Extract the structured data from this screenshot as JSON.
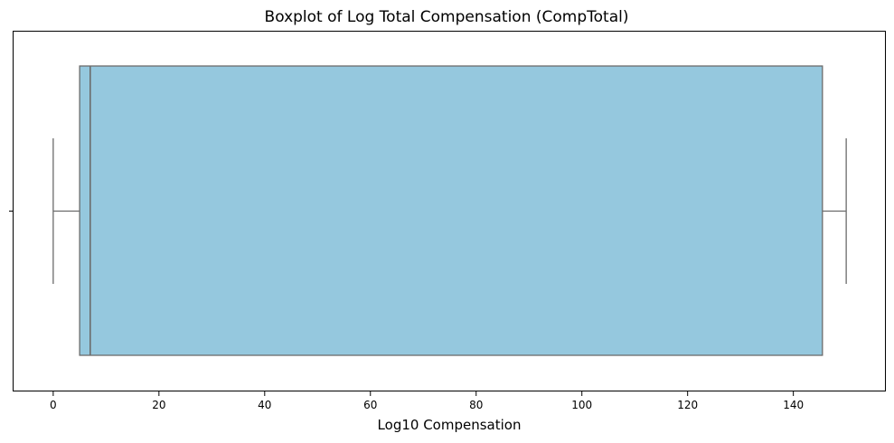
{
  "chart_data": {
    "type": "boxplot",
    "orientation": "horizontal",
    "title": "Boxplot of Log Total Compensation (CompTotal)",
    "xlabel": "Log10 Compensation",
    "ylabel": "",
    "xlim": [
      -7.5,
      157.5
    ],
    "xticks": [
      0,
      20,
      40,
      60,
      80,
      100,
      120,
      140
    ],
    "grid": false,
    "box": {
      "whisker_low": 0,
      "q1": 5,
      "median": 7,
      "q3": 145.5,
      "whisker_high": 150
    },
    "colors": {
      "box_fill": "#95c8de",
      "lines": "#6b6b6b"
    }
  }
}
